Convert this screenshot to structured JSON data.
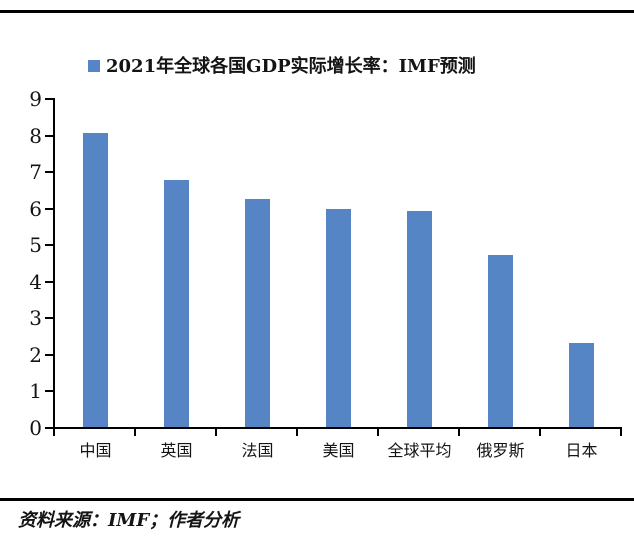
{
  "page": {
    "background": "#ffffff",
    "rule_color": "#000000"
  },
  "chart_data": {
    "type": "bar",
    "title": "2021年全球各国GDP实际增长率：IMF预测",
    "legend_position": "top",
    "categories": [
      "中国",
      "英国",
      "法国",
      "美国",
      "全球平均",
      "俄罗斯",
      "日本"
    ],
    "values": [
      8.05,
      6.75,
      6.25,
      5.95,
      5.9,
      4.7,
      2.3
    ],
    "xlabel": "",
    "ylabel": "",
    "ylim": [
      0,
      9
    ],
    "yticks": [
      0,
      1,
      2,
      3,
      4,
      5,
      6,
      7,
      8,
      9
    ],
    "grid": false,
    "bar_color": "#5585C4",
    "axis_color": "#000000"
  },
  "footer": {
    "source_text": "资料来源：IMF；作者分析"
  }
}
